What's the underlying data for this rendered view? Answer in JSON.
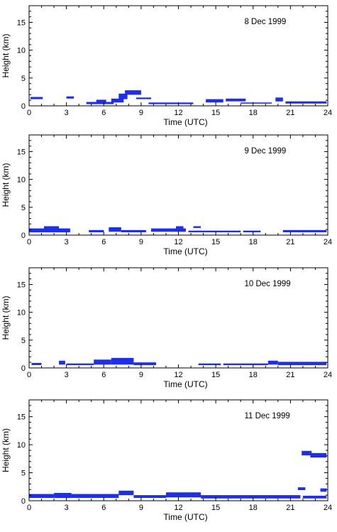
{
  "chart_data": [
    {
      "type": "scatter",
      "title": "8 Dec 1999",
      "xlabel": "Time (UTC)",
      "ylabel": "Height (km)",
      "xlim": [
        0,
        24
      ],
      "ylim": [
        0,
        18
      ],
      "xticks": [
        "0",
        "3",
        "6",
        "9",
        "12",
        "15",
        "18",
        "21",
        "24"
      ],
      "yticks": [
        "0",
        "5",
        "10",
        "15"
      ],
      "grid": false,
      "series": [
        {
          "points": [
            {
              "x": 0.1,
              "x2": 1.1,
              "y": 1.2,
              "y2": 1.6
            },
            {
              "x": 3.0,
              "x2": 3.6,
              "y": 1.3,
              "y2": 1.7
            },
            {
              "x": 4.6,
              "x2": 6.8,
              "y": 0.3,
              "y2": 0.7
            },
            {
              "x": 5.4,
              "x2": 6.2,
              "y": 0.6,
              "y2": 1.1
            },
            {
              "x": 6.6,
              "x2": 7.6,
              "y": 0.6,
              "y2": 1.3
            },
            {
              "x": 7.2,
              "x2": 7.9,
              "y": 1.2,
              "y2": 2.2
            },
            {
              "x": 7.7,
              "x2": 9.0,
              "y": 2.0,
              "y2": 2.8
            },
            {
              "x": 8.6,
              "x2": 9.8,
              "y": 1.2,
              "y2": 1.5
            },
            {
              "x": 9.6,
              "x2": 13.2,
              "y": 0.3,
              "y2": 0.6
            },
            {
              "x": 14.2,
              "x2": 15.6,
              "y": 0.6,
              "y2": 1.2
            },
            {
              "x": 15.8,
              "x2": 17.4,
              "y": 0.8,
              "y2": 1.3
            },
            {
              "x": 17.0,
              "x2": 19.5,
              "y": 0.4,
              "y2": 0.6
            },
            {
              "x": 19.8,
              "x2": 20.4,
              "y": 0.8,
              "y2": 1.5
            },
            {
              "x": 20.6,
              "x2": 23.9,
              "y": 0.4,
              "y2": 0.8
            }
          ]
        }
      ]
    },
    {
      "type": "scatter",
      "title": "9 Dec 1999",
      "xlabel": "Time (UTC)",
      "ylabel": "Height (km)",
      "xlim": [
        0,
        24
      ],
      "ylim": [
        0,
        18
      ],
      "xticks": [
        "0",
        "3",
        "6",
        "9",
        "12",
        "15",
        "18",
        "21",
        "24"
      ],
      "yticks": [
        "0",
        "5",
        "10",
        "15"
      ],
      "grid": false,
      "series": [
        {
          "points": [
            {
              "x": 0.0,
              "x2": 3.3,
              "y": 0.5,
              "y2": 1.2
            },
            {
              "x": 1.2,
              "x2": 2.4,
              "y": 1.0,
              "y2": 1.6
            },
            {
              "x": 4.8,
              "x2": 6.0,
              "y": 0.5,
              "y2": 0.9
            },
            {
              "x": 6.4,
              "x2": 7.4,
              "y": 0.6,
              "y2": 1.4
            },
            {
              "x": 7.4,
              "x2": 9.4,
              "y": 0.5,
              "y2": 0.9
            },
            {
              "x": 9.8,
              "x2": 12.6,
              "y": 0.6,
              "y2": 1.2
            },
            {
              "x": 11.8,
              "x2": 12.4,
              "y": 1.1,
              "y2": 1.6
            },
            {
              "x": 13.2,
              "x2": 13.8,
              "y": 1.3,
              "y2": 1.6
            },
            {
              "x": 12.8,
              "x2": 17.0,
              "y": 0.5,
              "y2": 0.8
            },
            {
              "x": 17.2,
              "x2": 18.6,
              "y": 0.5,
              "y2": 0.8
            },
            {
              "x": 20.4,
              "x2": 23.9,
              "y": 0.5,
              "y2": 0.9
            }
          ]
        }
      ]
    },
    {
      "type": "scatter",
      "title": "10 Dec 1999",
      "xlabel": "Time (UTC)",
      "ylabel": "Height (km)",
      "xlim": [
        0,
        24
      ],
      "ylim": [
        0,
        18
      ],
      "xticks": [
        "0",
        "3",
        "6",
        "9",
        "12",
        "15",
        "18",
        "21",
        "24"
      ],
      "yticks": [
        "0",
        "5",
        "10",
        "15"
      ],
      "grid": false,
      "series": [
        {
          "points": [
            {
              "x": 0.2,
              "x2": 1.0,
              "y": 0.5,
              "y2": 0.9
            },
            {
              "x": 2.4,
              "x2": 2.9,
              "y": 0.6,
              "y2": 1.3
            },
            {
              "x": 3.0,
              "x2": 5.2,
              "y": 0.5,
              "y2": 0.8
            },
            {
              "x": 5.2,
              "x2": 6.6,
              "y": 0.6,
              "y2": 1.5
            },
            {
              "x": 6.6,
              "x2": 8.4,
              "y": 0.6,
              "y2": 1.8
            },
            {
              "x": 8.4,
              "x2": 10.2,
              "y": 0.5,
              "y2": 1.0
            },
            {
              "x": 13.6,
              "x2": 15.4,
              "y": 0.5,
              "y2": 0.8
            },
            {
              "x": 15.6,
              "x2": 19.2,
              "y": 0.5,
              "y2": 0.8
            },
            {
              "x": 19.2,
              "x2": 20.0,
              "y": 0.6,
              "y2": 1.3
            },
            {
              "x": 20.0,
              "x2": 23.9,
              "y": 0.5,
              "y2": 1.1
            }
          ]
        }
      ]
    },
    {
      "type": "scatter",
      "title": "11 Dec 1999",
      "xlabel": "Time (UTC)",
      "ylabel": "Height (km)",
      "xlim": [
        0,
        24
      ],
      "ylim": [
        0,
        18
      ],
      "xticks": [
        "0",
        "3",
        "6",
        "9",
        "12",
        "15",
        "18",
        "21",
        "24"
      ],
      "yticks": [
        "0",
        "5",
        "10",
        "15"
      ],
      "grid": false,
      "series": [
        {
          "points": [
            {
              "x": 0.0,
              "x2": 2.0,
              "y": 0.5,
              "y2": 1.2
            },
            {
              "x": 2.0,
              "x2": 3.4,
              "y": 0.5,
              "y2": 1.4
            },
            {
              "x": 3.4,
              "x2": 7.2,
              "y": 0.5,
              "y2": 1.2
            },
            {
              "x": 7.2,
              "x2": 8.4,
              "y": 1.0,
              "y2": 1.8
            },
            {
              "x": 8.4,
              "x2": 11.0,
              "y": 0.5,
              "y2": 1.0
            },
            {
              "x": 11.0,
              "x2": 13.8,
              "y": 0.6,
              "y2": 1.5
            },
            {
              "x": 13.8,
              "x2": 21.8,
              "y": 0.4,
              "y2": 1.0
            },
            {
              "x": 21.6,
              "x2": 22.2,
              "y": 1.9,
              "y2": 2.4
            },
            {
              "x": 22.0,
              "x2": 23.9,
              "y": 0.4,
              "y2": 0.9
            },
            {
              "x": 23.4,
              "x2": 23.9,
              "y": 1.6,
              "y2": 2.2
            },
            {
              "x": 21.9,
              "x2": 22.7,
              "y": 8.1,
              "y2": 8.9
            },
            {
              "x": 22.6,
              "x2": 23.9,
              "y": 7.7,
              "y2": 8.5
            }
          ]
        }
      ]
    }
  ]
}
